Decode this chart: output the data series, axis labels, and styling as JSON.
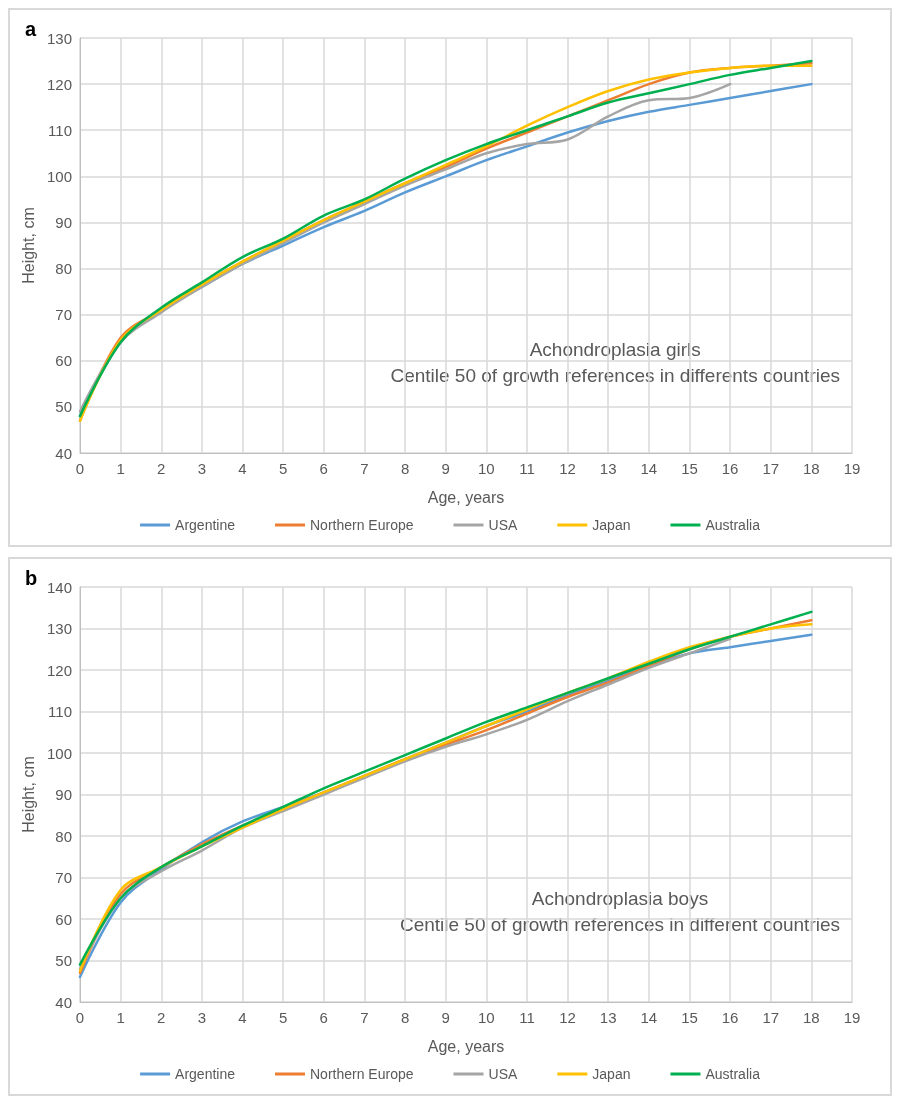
{
  "chart_data": [
    {
      "type": "line",
      "title": "a",
      "xlabel": "Age, years",
      "ylabel": "Height, cm",
      "annotations": [
        "Achondroplasia girls",
        "Centile 50 of growth references in differents countries"
      ],
      "x": [
        0,
        1,
        2,
        3,
        4,
        5,
        6,
        7,
        8,
        9,
        10,
        11,
        12,
        13,
        14,
        15,
        16,
        17,
        18
      ],
      "series": [
        {
          "name": "Argentine",
          "color": "#5b9bd5",
          "values": [
            48,
            64,
            71,
            76,
            81,
            85,
            89,
            92.5,
            96.5,
            100,
            103.5,
            106.5,
            109.5,
            112,
            114,
            115.5,
            117,
            118.5,
            120
          ]
        },
        {
          "name": "Northern Europe",
          "color": "#ed7d31",
          "values": [
            47,
            65,
            71,
            76.5,
            81.5,
            86,
            90.5,
            94.5,
            98.5,
            102,
            106,
            109.5,
            113,
            116.5,
            120,
            122.5,
            123.5,
            124,
            124.5
          ]
        },
        {
          "name": "USA",
          "color": "#a5a5a5",
          "x": [
            0,
            1,
            2,
            3,
            4,
            5,
            6,
            7,
            8,
            9,
            10,
            11,
            12,
            13,
            14,
            15,
            16
          ],
          "values": [
            49,
            64,
            70.5,
            76,
            81,
            85.5,
            90,
            94,
            98,
            101.5,
            105,
            107,
            108,
            113,
            116.5,
            117,
            120
          ]
        },
        {
          "name": "Japan",
          "color": "#ffc000",
          "values": [
            47,
            64.5,
            71,
            76.5,
            81.5,
            86,
            90.5,
            94.5,
            98.5,
            102.5,
            106.5,
            111,
            115,
            118.5,
            121,
            122.5,
            123.5,
            124,
            124
          ]
        },
        {
          "name": "Australia",
          "color": "#00b050",
          "values": [
            48,
            64,
            71.5,
            77,
            82.5,
            86.5,
            91.5,
            95,
            99.5,
            103.5,
            107,
            110,
            113,
            116,
            118,
            120,
            122,
            123.5,
            125
          ]
        }
      ],
      "xlim": [
        0,
        19
      ],
      "xticks": [
        0,
        1,
        2,
        3,
        4,
        5,
        6,
        7,
        8,
        9,
        10,
        11,
        12,
        13,
        14,
        15,
        16,
        17,
        18,
        19
      ],
      "ylim": [
        40,
        130
      ],
      "yticks": [
        40,
        50,
        60,
        70,
        80,
        90,
        100,
        110,
        120,
        130
      ],
      "grid": true,
      "legend": "bottom",
      "marker": "none",
      "line_style": "solid"
    },
    {
      "type": "line",
      "title": "b",
      "xlabel": "Age, years",
      "ylabel": "Height, cm",
      "annotations": [
        "Achondroplasia boys",
        "Centile 50 of growth references in different countries"
      ],
      "x": [
        0,
        1,
        2,
        3,
        4,
        5,
        6,
        7,
        8,
        9,
        10,
        11,
        12,
        13,
        14,
        15,
        16,
        17,
        18
      ],
      "series": [
        {
          "name": "Argentine",
          "color": "#5b9bd5",
          "values": [
            46,
            64,
            72,
            78.5,
            83.5,
            87,
            90.5,
            94.5,
            98.5,
            102.5,
            106.5,
            110,
            114,
            117.5,
            121,
            124,
            125.5,
            127,
            128.5
          ]
        },
        {
          "name": "Northern Europe",
          "color": "#ed7d31",
          "values": [
            47,
            66,
            72.5,
            78,
            82.5,
            86.5,
            90.5,
            94.5,
            98.5,
            102,
            105.5,
            109.5,
            113.5,
            117,
            121,
            125,
            128,
            130,
            132
          ]
        },
        {
          "name": "USA",
          "color": "#a5a5a5",
          "x": [
            0,
            1,
            2,
            3,
            4,
            5,
            6,
            7,
            8,
            9,
            10,
            11,
            12,
            13,
            14,
            15,
            16
          ],
          "values": [
            48,
            65,
            71.5,
            76.5,
            82,
            86,
            90,
            94,
            98,
            101.5,
            104.5,
            108,
            112.5,
            116.5,
            120.5,
            124,
            127.5
          ]
        },
        {
          "name": "Japan",
          "color": "#ffc000",
          "values": [
            47.5,
            67,
            72.5,
            77.5,
            82,
            86.5,
            90.5,
            94.5,
            98.5,
            102.5,
            106.5,
            110.5,
            114.5,
            118,
            122,
            125.5,
            128,
            130,
            131
          ]
        },
        {
          "name": "Australia",
          "color": "#00b050",
          "values": [
            49,
            65,
            72.5,
            77.5,
            82.5,
            87,
            91.5,
            95.5,
            99.5,
            103.5,
            107.5,
            111,
            114.5,
            118,
            121.5,
            125,
            128,
            131,
            134
          ]
        }
      ],
      "xlim": [
        0,
        19
      ],
      "xticks": [
        0,
        1,
        2,
        3,
        4,
        5,
        6,
        7,
        8,
        9,
        10,
        11,
        12,
        13,
        14,
        15,
        16,
        17,
        18,
        19
      ],
      "ylim": [
        40,
        140
      ],
      "yticks": [
        40,
        50,
        60,
        70,
        80,
        90,
        100,
        110,
        120,
        130,
        140
      ],
      "grid": true,
      "legend": "bottom",
      "marker": "none",
      "line_style": "solid"
    }
  ]
}
